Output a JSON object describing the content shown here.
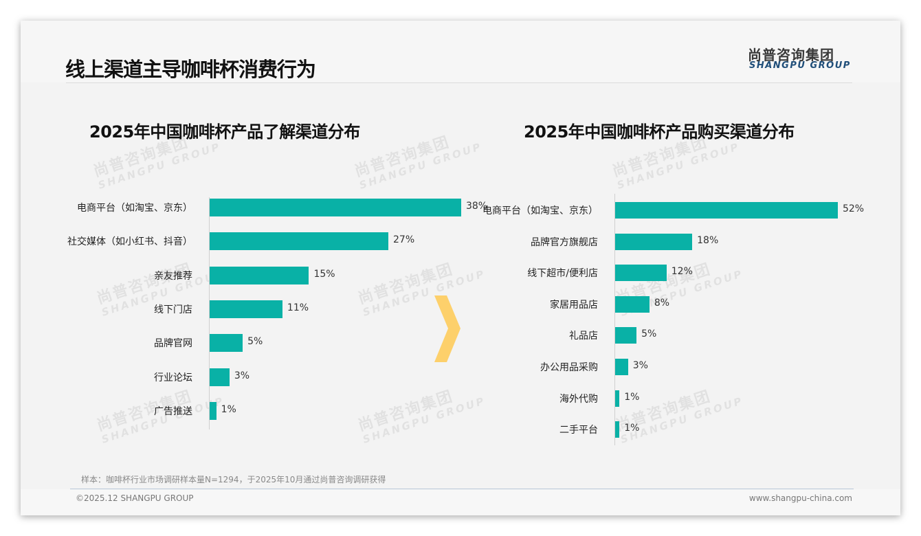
{
  "header": {
    "title": "线上渠道主导咖啡杯消费行为",
    "logo_cn": "尚普咨询集团",
    "logo_en": "SHANGPU GROUP"
  },
  "watermark": {
    "cn": "尚普咨询集团",
    "en": "SHANGPU GROUP"
  },
  "footer": {
    "note": "样本：咖啡杯行业市场调研样本量N=1294，于2025年10月通过尚普咨询调研获得",
    "copyright": "©2025.12 SHANGPU GROUP",
    "url": "www.shangpu-china.com"
  },
  "colors": {
    "bar": "#09b1a6",
    "arrow": "#fdd06b"
  },
  "chart_data": [
    {
      "type": "bar",
      "orientation": "horizontal",
      "title": "2025年中国咖啡杯产品了解渠道分布",
      "categories": [
        "电商平台（如淘宝、京东）",
        "社交媒体（如小红书、抖音）",
        "亲友推荐",
        "线下门店",
        "品牌官网",
        "行业论坛",
        "广告推送"
      ],
      "values": [
        38,
        27,
        15,
        11,
        5,
        3,
        1
      ],
      "labels": [
        "38%",
        "27%",
        "15%",
        "11%",
        "5%",
        "3%",
        "1%"
      ],
      "unit": "%"
    },
    {
      "type": "bar",
      "orientation": "horizontal",
      "title": "2025年中国咖啡杯产品购买渠道分布",
      "categories": [
        "电商平台（如淘宝、京东）",
        "品牌官方旗舰店",
        "线下超市/便利店",
        "家居用品店",
        "礼品店",
        "办公用品采购",
        "海外代购",
        "二手平台"
      ],
      "values": [
        52,
        18,
        12,
        8,
        5,
        3,
        1,
        1
      ],
      "labels": [
        "52%",
        "18%",
        "12%",
        "8%",
        "5%",
        "3%",
        "1%",
        "1%"
      ],
      "unit": "%"
    }
  ]
}
